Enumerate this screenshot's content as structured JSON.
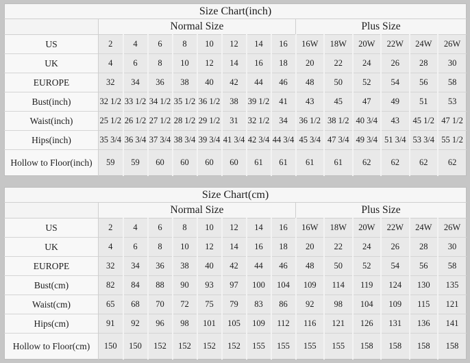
{
  "page": {
    "background_color": "#c6c6c6",
    "table_background_color": "#f5f5f5",
    "data_cell_color": "#e9e9e9",
    "label_cell_color": "#f8f8f8",
    "border_color": "#cfcfcf",
    "text_color": "#1c1c1c"
  },
  "chart_data": [
    {
      "type": "table",
      "title": "Size Chart(inch)",
      "group_headers": [
        {
          "label": "",
          "span": 1
        },
        {
          "label": "Normal Size",
          "span": 8
        },
        {
          "label": "Plus Size",
          "span": 6
        }
      ],
      "rows": [
        {
          "label": "US",
          "values": [
            "2",
            "4",
            "6",
            "8",
            "10",
            "12",
            "14",
            "16",
            "16W",
            "18W",
            "20W",
            "22W",
            "24W",
            "26W"
          ]
        },
        {
          "label": "UK",
          "values": [
            "4",
            "6",
            "8",
            "10",
            "12",
            "14",
            "16",
            "18",
            "20",
            "22",
            "24",
            "26",
            "28",
            "30"
          ]
        },
        {
          "label": "EUROPE",
          "values": [
            "32",
            "34",
            "36",
            "38",
            "40",
            "42",
            "44",
            "46",
            "48",
            "50",
            "52",
            "54",
            "56",
            "58"
          ]
        },
        {
          "label": "Bust(inch)",
          "values": [
            "32 1/2",
            "33 1/2",
            "34 1/2",
            "35 1/2",
            "36 1/2",
            "38",
            "39 1/2",
            "41",
            "43",
            "45",
            "47",
            "49",
            "51",
            "53"
          ]
        },
        {
          "label": "Waist(inch)",
          "values": [
            "25 1/2",
            "26 1/2",
            "27 1/2",
            "28 1/2",
            "29 1/2",
            "31",
            "32 1/2",
            "34",
            "36 1/2",
            "38 1/2",
            "40 3/4",
            "43",
            "45 1/2",
            "47 1/2"
          ]
        },
        {
          "label": "Hips(inch)",
          "values": [
            "35 3/4",
            "36 3/4",
            "37 3/4",
            "38 3/4",
            "39 3/4",
            "41 3/4",
            "42 3/4",
            "44 3/4",
            "45 3/4",
            "47 3/4",
            "49 3/4",
            "51 3/4",
            "53 3/4",
            "55 1/2"
          ]
        },
        {
          "label": "Hollow to Floor(inch)",
          "values": [
            "59",
            "59",
            "60",
            "60",
            "60",
            "60",
            "61",
            "61",
            "61",
            "61",
            "62",
            "62",
            "62",
            "62"
          ]
        }
      ]
    },
    {
      "type": "table",
      "title": "Size Chart(cm)",
      "group_headers": [
        {
          "label": "",
          "span": 1
        },
        {
          "label": "Normal Size",
          "span": 8
        },
        {
          "label": "Plus Size",
          "span": 6
        }
      ],
      "rows": [
        {
          "label": "US",
          "values": [
            "2",
            "4",
            "6",
            "8",
            "10",
            "12",
            "14",
            "16",
            "16W",
            "18W",
            "20W",
            "22W",
            "24W",
            "26W"
          ]
        },
        {
          "label": "UK",
          "values": [
            "4",
            "6",
            "8",
            "10",
            "12",
            "14",
            "16",
            "18",
            "20",
            "22",
            "24",
            "26",
            "28",
            "30"
          ]
        },
        {
          "label": "EUROPE",
          "values": [
            "32",
            "34",
            "36",
            "38",
            "40",
            "42",
            "44",
            "46",
            "48",
            "50",
            "52",
            "54",
            "56",
            "58"
          ]
        },
        {
          "label": "Bust(cm)",
          "values": [
            "82",
            "84",
            "88",
            "90",
            "93",
            "97",
            "100",
            "104",
            "109",
            "114",
            "119",
            "124",
            "130",
            "135"
          ]
        },
        {
          "label": "Waist(cm)",
          "values": [
            "65",
            "68",
            "70",
            "72",
            "75",
            "79",
            "83",
            "86",
            "92",
            "98",
            "104",
            "109",
            "115",
            "121"
          ]
        },
        {
          "label": "Hips(cm)",
          "values": [
            "91",
            "92",
            "96",
            "98",
            "101",
            "105",
            "109",
            "112",
            "116",
            "121",
            "126",
            "131",
            "136",
            "141"
          ]
        },
        {
          "label": "Hollow to Floor(cm)",
          "values": [
            "150",
            "150",
            "152",
            "152",
            "152",
            "152",
            "155",
            "155",
            "155",
            "155",
            "158",
            "158",
            "158",
            "158"
          ]
        }
      ]
    }
  ]
}
